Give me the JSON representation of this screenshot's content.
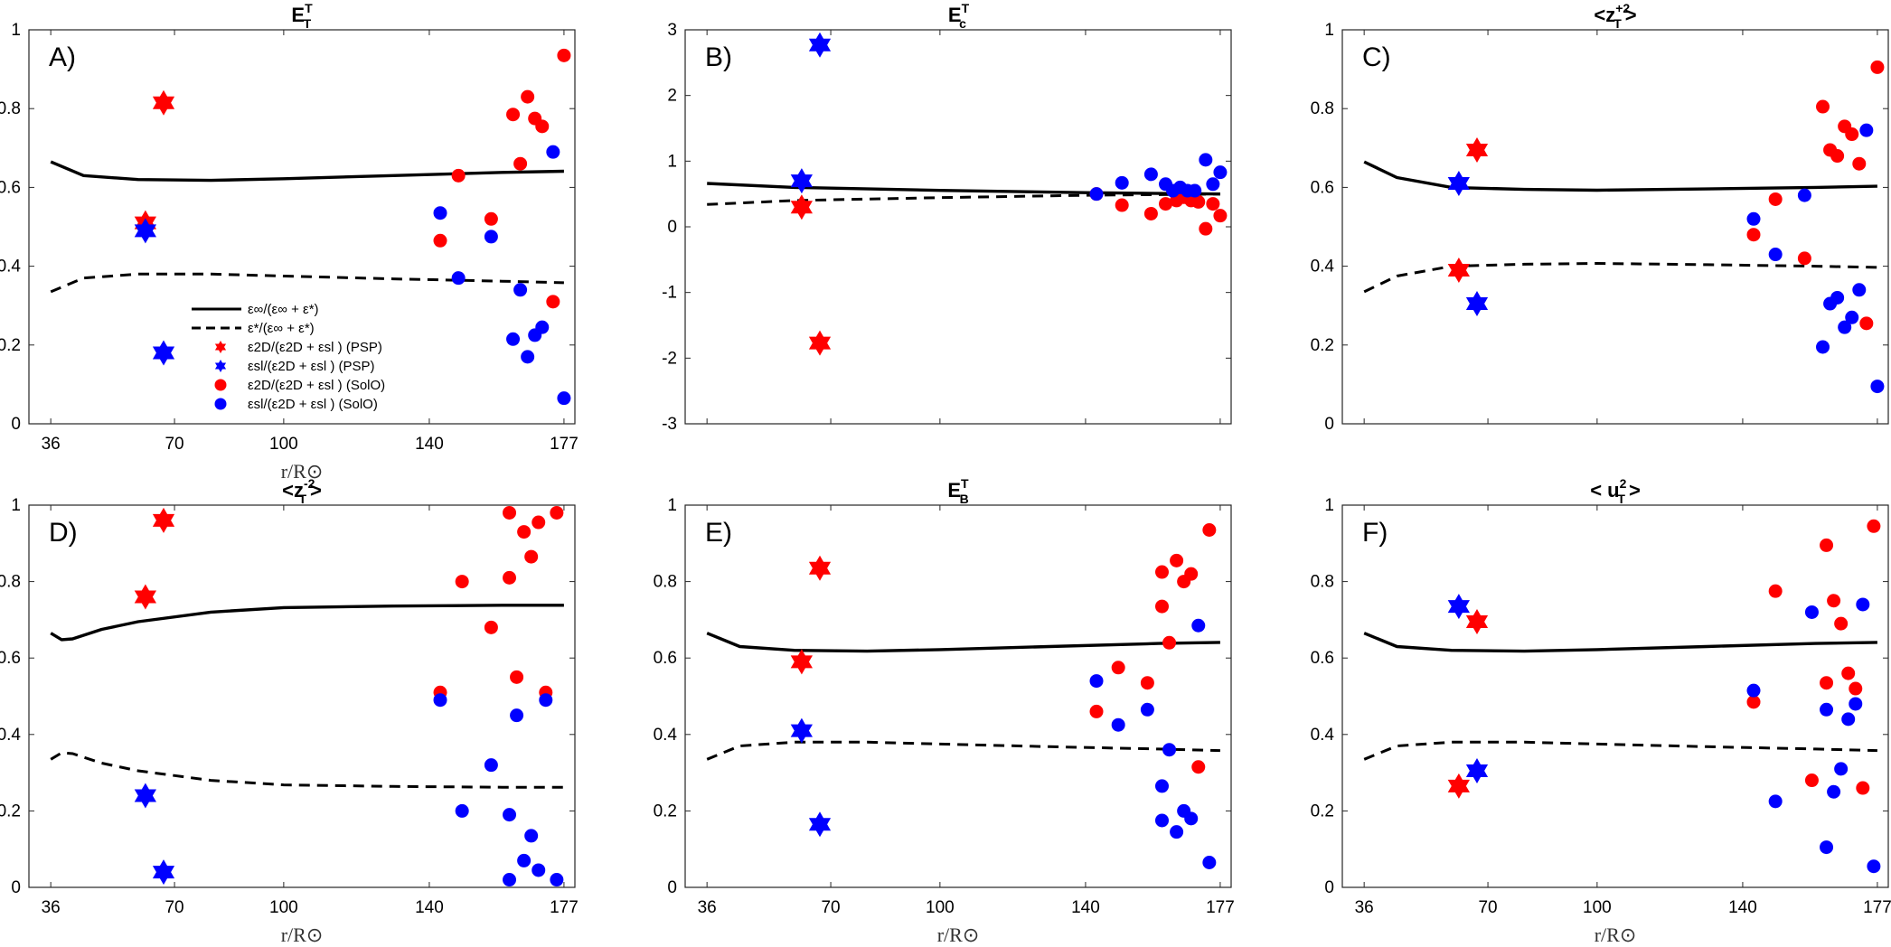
{
  "figure": {
    "xlabel": "r/R⊙",
    "legend_entries": [
      {
        "style": "solid",
        "label": "ε∞/(ε∞ + ε*)"
      },
      {
        "style": "dashed",
        "label": "ε*/(ε∞ + ε*)"
      },
      {
        "style": "star-red",
        "label": "ε2D/(ε2D + εsl ) (PSP)"
      },
      {
        "style": "star-blue",
        "label": "εsl/(ε2D + εsl ) (PSP)"
      },
      {
        "style": "dot-red",
        "label": "ε2D/(ε2D + εsl ) (SolO)"
      },
      {
        "style": "dot-blue",
        "label": "εsl/(ε2D + εsl ) (SolO)"
      }
    ]
  },
  "chart_data": [
    {
      "type": "scatter",
      "panel": "A)",
      "title": "E",
      "title_sup": "T",
      "title_sub": "T",
      "xlim": [
        30,
        180
      ],
      "ylim": [
        0,
        1
      ],
      "xticks": [
        36,
        70,
        100,
        140,
        177
      ],
      "yticks": [
        0,
        0.2,
        0.4,
        0.6,
        0.8,
        1
      ],
      "solid": [
        [
          36,
          0.665
        ],
        [
          45,
          0.63
        ],
        [
          60,
          0.62
        ],
        [
          80,
          0.618
        ],
        [
          100,
          0.622
        ],
        [
          130,
          0.63
        ],
        [
          160,
          0.638
        ],
        [
          177,
          0.641
        ]
      ],
      "dashed": [
        [
          36,
          0.335
        ],
        [
          45,
          0.37
        ],
        [
          60,
          0.38
        ],
        [
          80,
          0.38
        ],
        [
          100,
          0.375
        ],
        [
          130,
          0.368
        ],
        [
          160,
          0.362
        ],
        [
          177,
          0.358
        ]
      ],
      "psp_red": [
        [
          62,
          0.51
        ],
        [
          67,
          0.815
        ]
      ],
      "psp_blue": [
        [
          62,
          0.49
        ],
        [
          67,
          0.18
        ]
      ],
      "solo_red": [
        [
          143,
          0.465
        ],
        [
          148,
          0.63
        ],
        [
          157,
          0.52
        ],
        [
          163,
          0.785
        ],
        [
          165,
          0.66
        ],
        [
          167,
          0.83
        ],
        [
          169,
          0.775
        ],
        [
          171,
          0.755
        ],
        [
          174,
          0.31
        ],
        [
          177,
          0.935
        ]
      ],
      "solo_blue": [
        [
          143,
          0.535
        ],
        [
          148,
          0.37
        ],
        [
          157,
          0.475
        ],
        [
          163,
          0.215
        ],
        [
          165,
          0.34
        ],
        [
          167,
          0.17
        ],
        [
          169,
          0.225
        ],
        [
          171,
          0.245
        ],
        [
          174,
          0.69
        ],
        [
          177,
          0.065
        ]
      ]
    },
    {
      "type": "scatter",
      "panel": "B)",
      "title": "E",
      "title_sup": "T",
      "title_sub": "c",
      "xlim": [
        30,
        180
      ],
      "ylim": [
        -3,
        3
      ],
      "xticks": [],
      "yticks": [
        -3,
        -2,
        -1,
        0,
        1,
        2,
        3
      ],
      "solid": [
        [
          36,
          0.66
        ],
        [
          60,
          0.6
        ],
        [
          100,
          0.555
        ],
        [
          140,
          0.52
        ],
        [
          177,
          0.5
        ]
      ],
      "dashed": [
        [
          36,
          0.34
        ],
        [
          60,
          0.4
        ],
        [
          100,
          0.445
        ],
        [
          140,
          0.48
        ],
        [
          177,
          0.5
        ]
      ],
      "psp_red": [
        [
          62,
          0.3
        ],
        [
          67,
          -1.77
        ]
      ],
      "psp_blue": [
        [
          62,
          0.7
        ],
        [
          67,
          2.77
        ]
      ],
      "solo_red": [
        [
          143,
          0.5
        ],
        [
          150,
          0.33
        ],
        [
          158,
          0.2
        ],
        [
          162,
          0.35
        ],
        [
          165,
          0.4
        ],
        [
          167,
          0.45
        ],
        [
          169,
          0.4
        ],
        [
          171,
          0.38
        ],
        [
          173,
          -0.03
        ],
        [
          175,
          0.35
        ],
        [
          177,
          0.17
        ]
      ],
      "solo_blue": [
        [
          143,
          0.5
        ],
        [
          150,
          0.67
        ],
        [
          158,
          0.8
        ],
        [
          162,
          0.65
        ],
        [
          164,
          0.55
        ],
        [
          166,
          0.6
        ],
        [
          168,
          0.55
        ],
        [
          170,
          0.55
        ],
        [
          173,
          1.02
        ],
        [
          175,
          0.65
        ],
        [
          177,
          0.83
        ]
      ]
    },
    {
      "type": "scatter",
      "panel": "C)",
      "title": "<z",
      "title_sup": "+2",
      "title_sub": "T",
      "title_suffix": ">",
      "xlim": [
        30,
        180
      ],
      "ylim": [
        0,
        1
      ],
      "xticks": [],
      "yticks": [
        0,
        0.2,
        0.4,
        0.6,
        0.8,
        1
      ],
      "solid": [
        [
          36,
          0.665
        ],
        [
          45,
          0.625
        ],
        [
          60,
          0.6
        ],
        [
          80,
          0.595
        ],
        [
          100,
          0.593
        ],
        [
          130,
          0.596
        ],
        [
          160,
          0.6
        ],
        [
          177,
          0.603
        ]
      ],
      "dashed": [
        [
          36,
          0.335
        ],
        [
          45,
          0.375
        ],
        [
          60,
          0.4
        ],
        [
          80,
          0.405
        ],
        [
          100,
          0.407
        ],
        [
          130,
          0.404
        ],
        [
          160,
          0.4
        ],
        [
          177,
          0.397
        ]
      ],
      "psp_red": [
        [
          62,
          0.39
        ],
        [
          67,
          0.695
        ]
      ],
      "psp_blue": [
        [
          62,
          0.61
        ],
        [
          67,
          0.305
        ]
      ],
      "solo_red": [
        [
          143,
          0.48
        ],
        [
          149,
          0.57
        ],
        [
          157,
          0.42
        ],
        [
          162,
          0.805
        ],
        [
          164,
          0.695
        ],
        [
          166,
          0.68
        ],
        [
          168,
          0.755
        ],
        [
          170,
          0.735
        ],
        [
          172,
          0.66
        ],
        [
          174,
          0.255
        ],
        [
          177,
          0.905
        ]
      ],
      "solo_blue": [
        [
          143,
          0.52
        ],
        [
          149,
          0.43
        ],
        [
          157,
          0.58
        ],
        [
          162,
          0.195
        ],
        [
          164,
          0.305
        ],
        [
          166,
          0.32
        ],
        [
          168,
          0.245
        ],
        [
          170,
          0.27
        ],
        [
          172,
          0.34
        ],
        [
          174,
          0.745
        ],
        [
          177,
          0.095
        ]
      ]
    },
    {
      "type": "scatter",
      "panel": "D)",
      "title": "<z",
      "title_sup": "-2",
      "title_sub": "T",
      "title_suffix": ">",
      "xlim": [
        30,
        180
      ],
      "ylim": [
        0,
        1
      ],
      "xticks": [
        36,
        70,
        100,
        140,
        177
      ],
      "yticks": [
        0,
        0.2,
        0.4,
        0.6,
        0.8,
        1
      ],
      "solid": [
        [
          36,
          0.665
        ],
        [
          39,
          0.648
        ],
        [
          42,
          0.65
        ],
        [
          50,
          0.675
        ],
        [
          60,
          0.695
        ],
        [
          80,
          0.72
        ],
        [
          100,
          0.732
        ],
        [
          130,
          0.736
        ],
        [
          160,
          0.738
        ],
        [
          177,
          0.738
        ]
      ],
      "dashed": [
        [
          36,
          0.335
        ],
        [
          39,
          0.352
        ],
        [
          42,
          0.35
        ],
        [
          50,
          0.325
        ],
        [
          60,
          0.305
        ],
        [
          80,
          0.28
        ],
        [
          100,
          0.268
        ],
        [
          130,
          0.264
        ],
        [
          160,
          0.262
        ],
        [
          177,
          0.262
        ]
      ],
      "psp_red": [
        [
          62,
          0.76
        ],
        [
          67,
          0.96
        ]
      ],
      "psp_blue": [
        [
          62,
          0.24
        ],
        [
          67,
          0.04
        ]
      ],
      "solo_red": [
        [
          143,
          0.51
        ],
        [
          149,
          0.8
        ],
        [
          157,
          0.68
        ],
        [
          162,
          0.81
        ],
        [
          162,
          0.98
        ],
        [
          164,
          0.55
        ],
        [
          166,
          0.93
        ],
        [
          168,
          0.865
        ],
        [
          170,
          0.955
        ],
        [
          172,
          0.51
        ],
        [
          175,
          0.98
        ]
      ],
      "solo_blue": [
        [
          143,
          0.49
        ],
        [
          149,
          0.2
        ],
        [
          157,
          0.32
        ],
        [
          162,
          0.19
        ],
        [
          162,
          0.02
        ],
        [
          164,
          0.45
        ],
        [
          166,
          0.07
        ],
        [
          168,
          0.135
        ],
        [
          170,
          0.045
        ],
        [
          172,
          0.49
        ],
        [
          175,
          0.02
        ]
      ]
    },
    {
      "type": "scatter",
      "panel": "E)",
      "title": "E",
      "title_sup": "T",
      "title_sub": "B",
      "xlim": [
        30,
        180
      ],
      "ylim": [
        0,
        1
      ],
      "xticks": [
        36,
        70,
        100,
        140,
        177
      ],
      "yticks": [
        0,
        0.2,
        0.4,
        0.6,
        0.8,
        1
      ],
      "solid": [
        [
          36,
          0.665
        ],
        [
          45,
          0.63
        ],
        [
          60,
          0.62
        ],
        [
          80,
          0.618
        ],
        [
          100,
          0.622
        ],
        [
          130,
          0.63
        ],
        [
          160,
          0.638
        ],
        [
          177,
          0.641
        ]
      ],
      "dashed": [
        [
          36,
          0.335
        ],
        [
          45,
          0.37
        ],
        [
          60,
          0.38
        ],
        [
          80,
          0.38
        ],
        [
          100,
          0.375
        ],
        [
          130,
          0.368
        ],
        [
          160,
          0.362
        ],
        [
          177,
          0.358
        ]
      ],
      "psp_red": [
        [
          62,
          0.59
        ],
        [
          67,
          0.835
        ]
      ],
      "psp_blue": [
        [
          62,
          0.41
        ],
        [
          67,
          0.165
        ]
      ],
      "solo_red": [
        [
          143,
          0.46
        ],
        [
          149,
          0.575
        ],
        [
          157,
          0.535
        ],
        [
          161,
          0.825
        ],
        [
          161,
          0.735
        ],
        [
          163,
          0.64
        ],
        [
          165,
          0.855
        ],
        [
          167,
          0.8
        ],
        [
          169,
          0.82
        ],
        [
          171,
          0.315
        ],
        [
          174,
          0.935
        ]
      ],
      "solo_blue": [
        [
          143,
          0.54
        ],
        [
          149,
          0.425
        ],
        [
          157,
          0.465
        ],
        [
          161,
          0.175
        ],
        [
          161,
          0.265
        ],
        [
          163,
          0.36
        ],
        [
          165,
          0.145
        ],
        [
          167,
          0.2
        ],
        [
          169,
          0.18
        ],
        [
          171,
          0.685
        ],
        [
          174,
          0.065
        ]
      ]
    },
    {
      "type": "scatter",
      "panel": "F)",
      "title": "< u",
      "title_sup": "2",
      "title_sub": "T",
      "title_suffix": ">",
      "xlim": [
        30,
        180
      ],
      "ylim": [
        0,
        1
      ],
      "xticks": [
        36,
        70,
        100,
        140,
        177
      ],
      "yticks": [
        0,
        0.2,
        0.4,
        0.6,
        0.8,
        1
      ],
      "solid": [
        [
          36,
          0.665
        ],
        [
          45,
          0.63
        ],
        [
          60,
          0.62
        ],
        [
          80,
          0.618
        ],
        [
          100,
          0.622
        ],
        [
          130,
          0.63
        ],
        [
          160,
          0.638
        ],
        [
          177,
          0.641
        ]
      ],
      "dashed": [
        [
          36,
          0.335
        ],
        [
          45,
          0.37
        ],
        [
          60,
          0.38
        ],
        [
          80,
          0.38
        ],
        [
          100,
          0.375
        ],
        [
          130,
          0.368
        ],
        [
          160,
          0.362
        ],
        [
          177,
          0.358
        ]
      ],
      "psp_red": [
        [
          62,
          0.265
        ],
        [
          67,
          0.695
        ]
      ],
      "psp_blue": [
        [
          62,
          0.735
        ],
        [
          67,
          0.305
        ]
      ],
      "solo_red": [
        [
          143,
          0.485
        ],
        [
          149,
          0.775
        ],
        [
          159,
          0.28
        ],
        [
          163,
          0.895
        ],
        [
          163,
          0.535
        ],
        [
          165,
          0.75
        ],
        [
          167,
          0.69
        ],
        [
          169,
          0.56
        ],
        [
          171,
          0.52
        ],
        [
          173,
          0.26
        ],
        [
          176,
          0.945
        ]
      ],
      "solo_blue": [
        [
          143,
          0.515
        ],
        [
          149,
          0.225
        ],
        [
          159,
          0.72
        ],
        [
          163,
          0.105
        ],
        [
          163,
          0.465
        ],
        [
          165,
          0.25
        ],
        [
          167,
          0.31
        ],
        [
          169,
          0.44
        ],
        [
          171,
          0.48
        ],
        [
          173,
          0.74
        ],
        [
          176,
          0.055
        ]
      ]
    }
  ]
}
